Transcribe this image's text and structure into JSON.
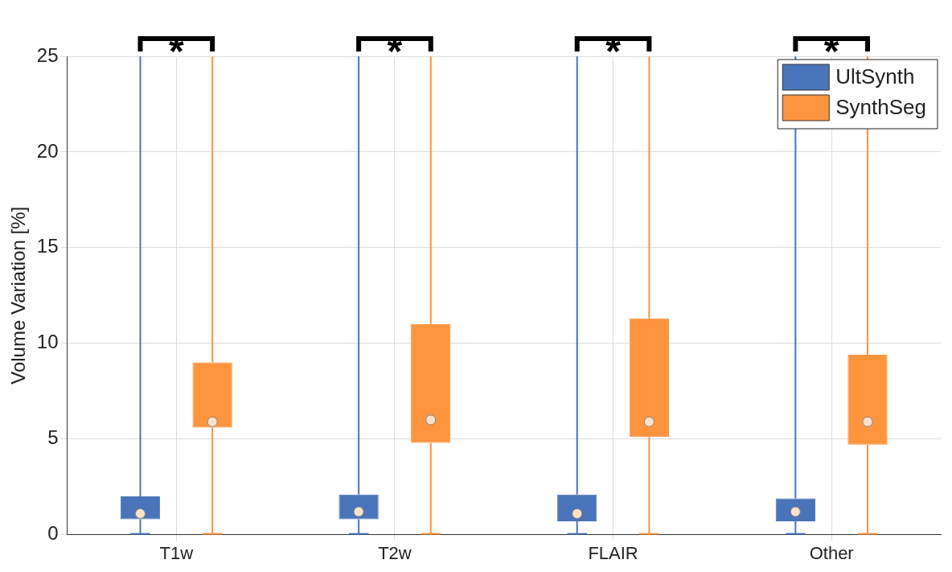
{
  "chart_data": {
    "type": "box",
    "ylabel": "Volume Variation [%]",
    "categories": [
      "T1w",
      "T2w",
      "FLAIR",
      "Other"
    ],
    "series": [
      {
        "name": "UltSynth",
        "color": "#4a74b9",
        "boxes": [
          {
            "low": 0,
            "q1": 0.8,
            "median": 1.1,
            "q3": 2.0,
            "high": 25
          },
          {
            "low": 0,
            "q1": 0.8,
            "median": 1.2,
            "q3": 2.1,
            "high": 25
          },
          {
            "low": 0,
            "q1": 0.7,
            "median": 1.1,
            "q3": 2.1,
            "high": 25
          },
          {
            "low": 0,
            "q1": 0.7,
            "median": 1.2,
            "q3": 1.9,
            "high": 25
          }
        ]
      },
      {
        "name": "SynthSeg",
        "color": "#ff943f",
        "boxes": [
          {
            "low": 0,
            "q1": 5.6,
            "median": 5.9,
            "q3": 9.0,
            "high": 25
          },
          {
            "low": 0,
            "q1": 4.8,
            "median": 6.0,
            "q3": 11.0,
            "high": 25
          },
          {
            "low": 0,
            "q1": 5.1,
            "median": 5.9,
            "q3": 11.3,
            "high": 25
          },
          {
            "low": 0,
            "q1": 4.7,
            "median": 5.9,
            "q3": 9.4,
            "high": 25
          }
        ]
      }
    ],
    "ylim": [
      0,
      25
    ],
    "yticks": [
      0,
      5,
      10,
      15,
      20,
      25
    ],
    "grid": true,
    "legend": "top right",
    "annotations": [
      "*",
      "*",
      "*",
      "*"
    ]
  }
}
